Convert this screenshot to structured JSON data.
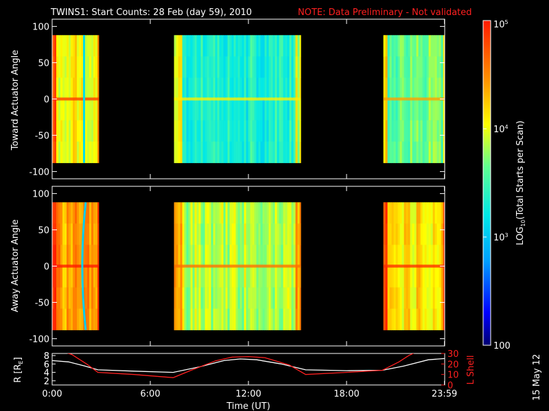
{
  "header": {
    "title": "TWINS1: Start Counts: 28 Feb (day  59), 2010",
    "note": "NOTE: Data Preliminary - Not validated"
  },
  "side_stamp": "15 May 12",
  "colors": {
    "note": "#ff2020",
    "rshell_line": "#ffffff",
    "lshell_line": "#ff2020",
    "gap": "#000000"
  },
  "colorbar": {
    "label": "LOG10(Total Starts per Scan)",
    "label_prefix": "LOG",
    "label_sub": "10",
    "label_suffix": "(Total Starts per Scan)",
    "ticks": [
      {
        "value": 100,
        "label": "100"
      },
      {
        "value": 1000,
        "label": "10",
        "sup": "3"
      },
      {
        "value": 10000,
        "label": "10",
        "sup": "4"
      },
      {
        "value": 100000,
        "label": "10",
        "sup": "5"
      }
    ],
    "range": [
      100,
      100000
    ],
    "scale": "log",
    "colormap": "rainbow"
  },
  "chart_data": [
    {
      "type": "heatmap",
      "panel": "toward",
      "ylabel": "Toward Actuator Angle",
      "ylim": [
        -110,
        110
      ],
      "yticks": [
        {
          "value": 100,
          "label": "100"
        },
        {
          "value": 50,
          "label": "50"
        },
        {
          "value": 0,
          "label": "0"
        },
        {
          "value": -50,
          "label": "-50"
        },
        {
          "value": -100,
          "label": "-100"
        }
      ],
      "data_angle_range": [
        -88,
        88
      ],
      "segments": [
        {
          "start": 0.0,
          "end": 2.85,
          "level": 0.7
        },
        {
          "start": 7.45,
          "end": 15.2,
          "level": 0.45
        },
        {
          "start": 20.25,
          "end": 23.99,
          "level": 0.55
        }
      ],
      "features": [
        {
          "time": 1.95,
          "kind": "low-line",
          "level": 0.38
        }
      ]
    },
    {
      "type": "heatmap",
      "panel": "away",
      "ylabel": "Away Actuator Angle",
      "ylim": [
        -110,
        110
      ],
      "yticks": [
        {
          "value": 100,
          "label": "100"
        },
        {
          "value": 50,
          "label": "50"
        },
        {
          "value": 0,
          "label": "0"
        },
        {
          "value": -50,
          "label": "-50"
        },
        {
          "value": -100,
          "label": "-100"
        }
      ],
      "data_angle_range": [
        -88,
        88
      ],
      "segments": [
        {
          "start": 0.0,
          "end": 2.85,
          "level": 0.8
        },
        {
          "start": 7.45,
          "end": 15.2,
          "level": 0.62
        },
        {
          "start": 20.25,
          "end": 23.99,
          "level": 0.72
        }
      ],
      "features": [
        {
          "time": 1.8,
          "kind": "curve",
          "level": 0.35
        }
      ]
    },
    {
      "type": "line",
      "panel": "ephemeris",
      "ylabel": "R [RE]",
      "ylabel_prefix": "R [R",
      "ylabel_sub": "E",
      "ylabel_suffix": "]",
      "ylim": [
        1,
        8.5
      ],
      "yticks": [
        2,
        4,
        6,
        8
      ],
      "y2label": "L Shell",
      "y2lim": [
        0,
        30
      ],
      "y2ticks": [
        0,
        10,
        20,
        30
      ],
      "xlabel": "Time (UT)",
      "xlim": [
        0,
        24
      ],
      "xticks": [
        {
          "value": 0,
          "label": "0:00"
        },
        {
          "value": 6,
          "label": "6:00"
        },
        {
          "value": 12,
          "label": "12:00"
        },
        {
          "value": 18,
          "label": "18:00"
        },
        {
          "value": 23.983,
          "label": "23:59"
        }
      ],
      "series": [
        {
          "axis": "left",
          "x": [
            0,
            1,
            2,
            2.8,
            5,
            7.4,
            9,
            10.5,
            11.5,
            12.5,
            14,
            15.5,
            18,
            20.2,
            21.5,
            23,
            24
          ],
          "y": [
            6.8,
            6.5,
            5.5,
            4.6,
            4.3,
            4.0,
            5.3,
            6.8,
            7.2,
            7.0,
            6.0,
            4.6,
            4.4,
            4.5,
            5.5,
            7.0,
            7.3
          ]
        },
        {
          "axis": "right",
          "x": [
            0.4,
            1.2,
            2.1,
            2.8,
            5,
            7.4,
            8.5,
            10,
            11,
            12,
            13,
            14.5,
            15.5,
            18,
            20.2,
            21.2,
            21.8,
            22.2
          ],
          "y": [
            33,
            29,
            20,
            12,
            10,
            7,
            14,
            23,
            26.5,
            27,
            26,
            19,
            10,
            12,
            14,
            22,
            28,
            31
          ]
        }
      ]
    }
  ]
}
